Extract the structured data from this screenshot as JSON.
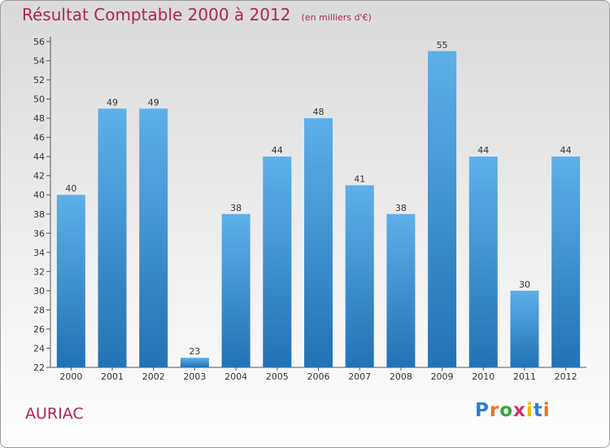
{
  "title": "Résultat Comptable 2000 à 2012",
  "subtitle": "(en milliers d'€)",
  "commune": "AURIAC",
  "logo": "Proxiti",
  "colors": {
    "bar_light": "#5eb0ea",
    "bar_dark": "#2272b4",
    "title": "#b0245a"
  },
  "chart_data": {
    "type": "bar",
    "title": "Résultat Comptable 2000 à 2012",
    "subtitle": "(en milliers d'€)",
    "xlabel": "",
    "ylabel": "",
    "categories": [
      "2000",
      "2001",
      "2002",
      "2003",
      "2004",
      "2005",
      "2006",
      "2007",
      "2008",
      "2009",
      "2010",
      "2011",
      "2012"
    ],
    "values": [
      40,
      49,
      49,
      23,
      38,
      44,
      48,
      41,
      38,
      55,
      44,
      30,
      44
    ],
    "ylim": [
      22,
      56
    ],
    "yticks": [
      22,
      24,
      26,
      28,
      30,
      32,
      34,
      36,
      38,
      40,
      42,
      44,
      46,
      48,
      50,
      52,
      54,
      56
    ],
    "grid": false
  }
}
